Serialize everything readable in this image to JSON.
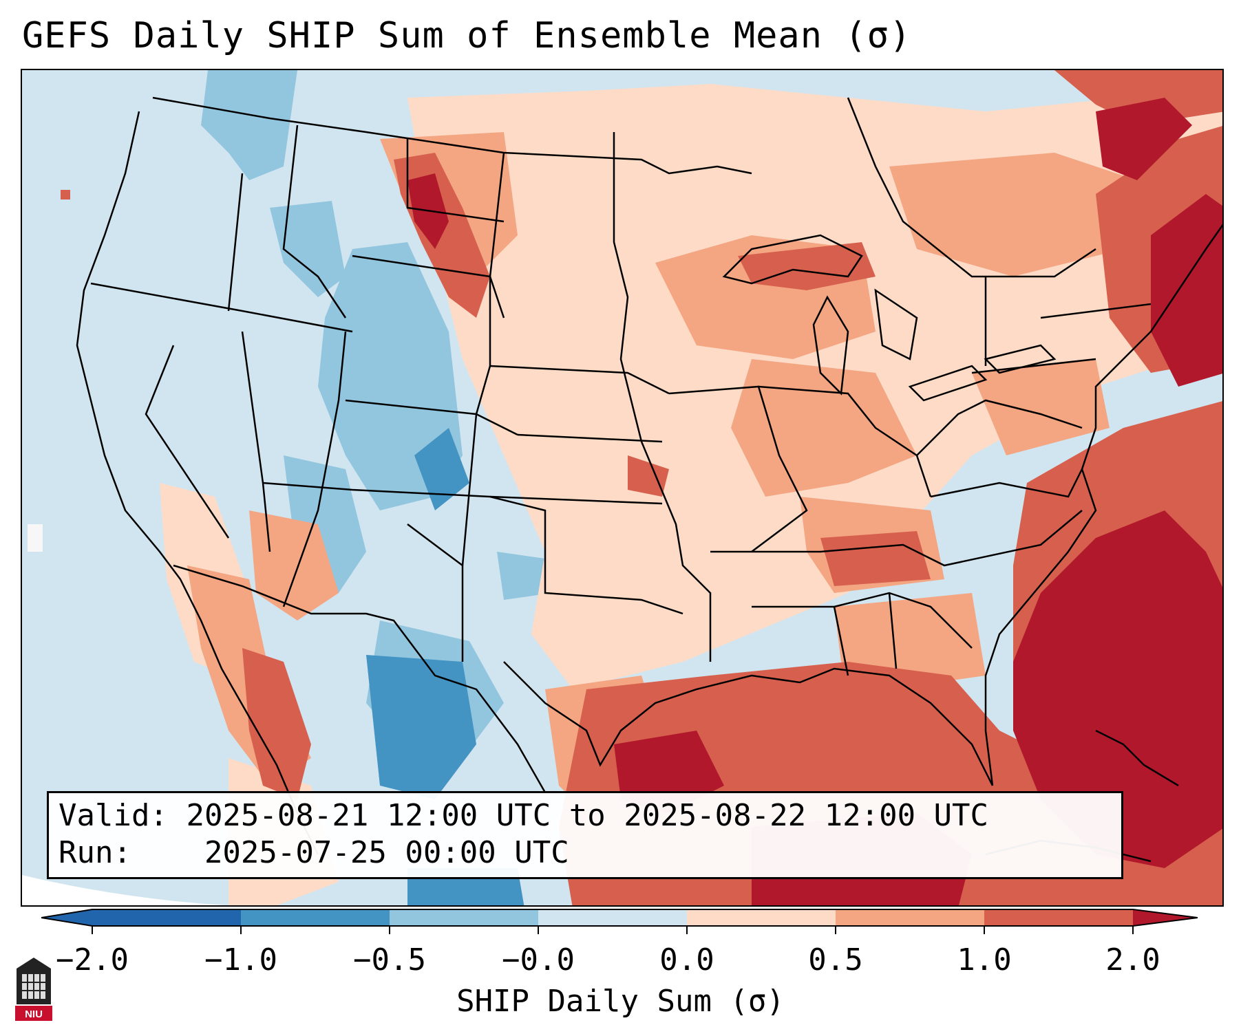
{
  "title": "GEFS Daily SHIP Sum of Ensemble Mean (σ)",
  "info": {
    "valid_label": "Valid:",
    "valid_value": "2025-08-21 12:00 UTC to 2025-08-22 12:00 UTC",
    "run_label": "Run:",
    "run_value": "2025-07-25 00:00 UTC"
  },
  "colorbar": {
    "label": "SHIP Daily Sum (σ)",
    "ticks": [
      "−2.0",
      "−1.0",
      "−0.5",
      "−0.0",
      "0.0",
      "0.5",
      "1.0",
      "2.0"
    ],
    "colors": [
      "#2166ac",
      "#4393c3",
      "#92c5de",
      "#d1e5f0",
      "#f7f7f7",
      "#fddbc7",
      "#f4a582",
      "#d6604d",
      "#b2182b"
    ]
  },
  "logo": {
    "text": "NIU",
    "color": "#c8102e"
  }
}
